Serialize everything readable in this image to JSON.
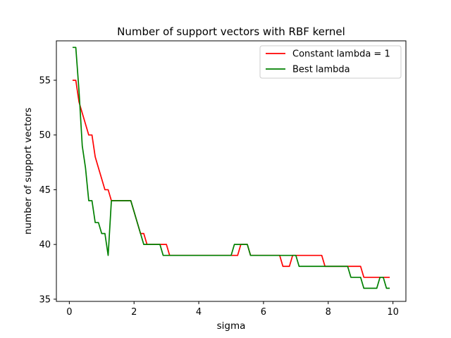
{
  "chart_data": {
    "type": "line",
    "title": "Number of support vectors with RBF kernel",
    "xlabel": "sigma",
    "ylabel": "number of support vectors",
    "xlim": [
      -0.4,
      10.4
    ],
    "ylim": [
      34.8,
      58.6
    ],
    "xticks": [
      0,
      2,
      4,
      6,
      8,
      10
    ],
    "xtick_labels": [
      "0",
      "2",
      "4",
      "6",
      "8",
      "10"
    ],
    "yticks": [
      35,
      40,
      45,
      50,
      55
    ],
    "ytick_labels": [
      "35",
      "40",
      "45",
      "50",
      "55"
    ],
    "grid": false,
    "legend_position": "top-right",
    "x": [
      0.1,
      0.2,
      0.3,
      0.4,
      0.5,
      0.6,
      0.7,
      0.8,
      0.9,
      1.0,
      1.1,
      1.2,
      1.3,
      1.4,
      1.5,
      1.6,
      1.7,
      1.8,
      1.9,
      2.0,
      2.1,
      2.2,
      2.3,
      2.4,
      2.5,
      2.6,
      2.7,
      2.8,
      2.9,
      3.0,
      3.1,
      3.2,
      3.3,
      3.4,
      3.5,
      3.6,
      3.7,
      3.8,
      3.9,
      4.0,
      4.1,
      4.2,
      4.3,
      4.4,
      4.5,
      4.6,
      4.7,
      4.8,
      4.9,
      5.0,
      5.1,
      5.2,
      5.3,
      5.4,
      5.5,
      5.6,
      5.7,
      5.8,
      5.9,
      6.0,
      6.1,
      6.2,
      6.3,
      6.4,
      6.5,
      6.6,
      6.7,
      6.8,
      6.9,
      7.0,
      7.1,
      7.2,
      7.3,
      7.4,
      7.5,
      7.6,
      7.7,
      7.8,
      7.9,
      8.0,
      8.1,
      8.2,
      8.3,
      8.4,
      8.5,
      8.6,
      8.7,
      8.8,
      8.9,
      9.0,
      9.1,
      9.2,
      9.3,
      9.4,
      9.5,
      9.6,
      9.7,
      9.8,
      9.9
    ],
    "series": [
      {
        "name": "Constant lambda = 1",
        "color": "#ff0000",
        "values": [
          55,
          55,
          53,
          52,
          51,
          50,
          50,
          48,
          47,
          46,
          45,
          45,
          44,
          44,
          44,
          44,
          44,
          44,
          44,
          43,
          42,
          41,
          41,
          40,
          40,
          40,
          40,
          40,
          40,
          40,
          39,
          39,
          39,
          39,
          39,
          39,
          39,
          39,
          39,
          39,
          39,
          39,
          39,
          39,
          39,
          39,
          39,
          39,
          39,
          39,
          39,
          39,
          40,
          40,
          40,
          39,
          39,
          39,
          39,
          39,
          39,
          39,
          39,
          39,
          39,
          38,
          38,
          38,
          39,
          39,
          39,
          39,
          39,
          39,
          39,
          39,
          39,
          39,
          38,
          38,
          38,
          38,
          38,
          38,
          38,
          38,
          38,
          38,
          38,
          38,
          37,
          37,
          37,
          37,
          37,
          37,
          37,
          37,
          37
        ]
      },
      {
        "name": "Best lambda",
        "color": "#008000",
        "values": [
          58,
          58,
          54,
          49,
          47,
          44,
          44,
          42,
          42,
          41,
          41,
          39,
          44,
          44,
          44,
          44,
          44,
          44,
          44,
          43,
          42,
          41,
          40,
          40,
          40,
          40,
          40,
          40,
          39,
          39,
          39,
          39,
          39,
          39,
          39,
          39,
          39,
          39,
          39,
          39,
          39,
          39,
          39,
          39,
          39,
          39,
          39,
          39,
          39,
          39,
          40,
          40,
          40,
          40,
          40,
          39,
          39,
          39,
          39,
          39,
          39,
          39,
          39,
          39,
          39,
          39,
          39,
          39,
          39,
          39,
          38,
          38,
          38,
          38,
          38,
          38,
          38,
          38,
          38,
          38,
          38,
          38,
          38,
          38,
          38,
          38,
          37,
          37,
          37,
          37,
          36,
          36,
          36,
          36,
          36,
          37,
          37,
          36,
          36
        ]
      }
    ]
  }
}
